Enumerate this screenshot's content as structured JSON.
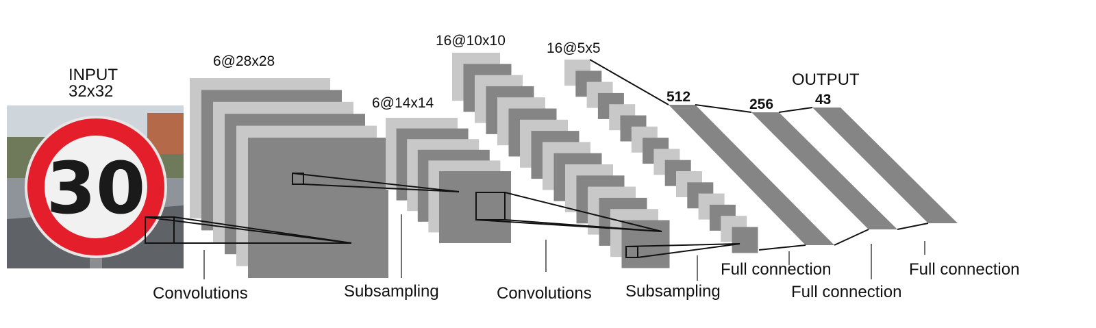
{
  "input": {
    "title_line1": "INPUT",
    "title_line2": "32x32",
    "sign_number": "30",
    "sign_colors": {
      "ring": "#e41e2b",
      "face": "#f1f1f1",
      "digits": "#1a1a1a"
    }
  },
  "layers": {
    "c1": {
      "label": "6@28x28",
      "maps": 6
    },
    "s2": {
      "label": "6@14x14",
      "maps": 6
    },
    "c3": {
      "label": "16@10x10",
      "maps": 16
    },
    "s4": {
      "label": "16@5x5",
      "maps": 16
    }
  },
  "fc": {
    "output_title": "OUTPUT",
    "fc1": "512",
    "fc2": "256",
    "fc3": "43"
  },
  "operations": {
    "op1": "Convolutions",
    "op2": "Subsampling",
    "op3": "Convolutions",
    "op4": "Subsampling",
    "op5": "Full connection",
    "op6": "Full connection",
    "op7": "Full connection"
  },
  "colors": {
    "light": "#c8c8c8",
    "dark": "#858585"
  }
}
